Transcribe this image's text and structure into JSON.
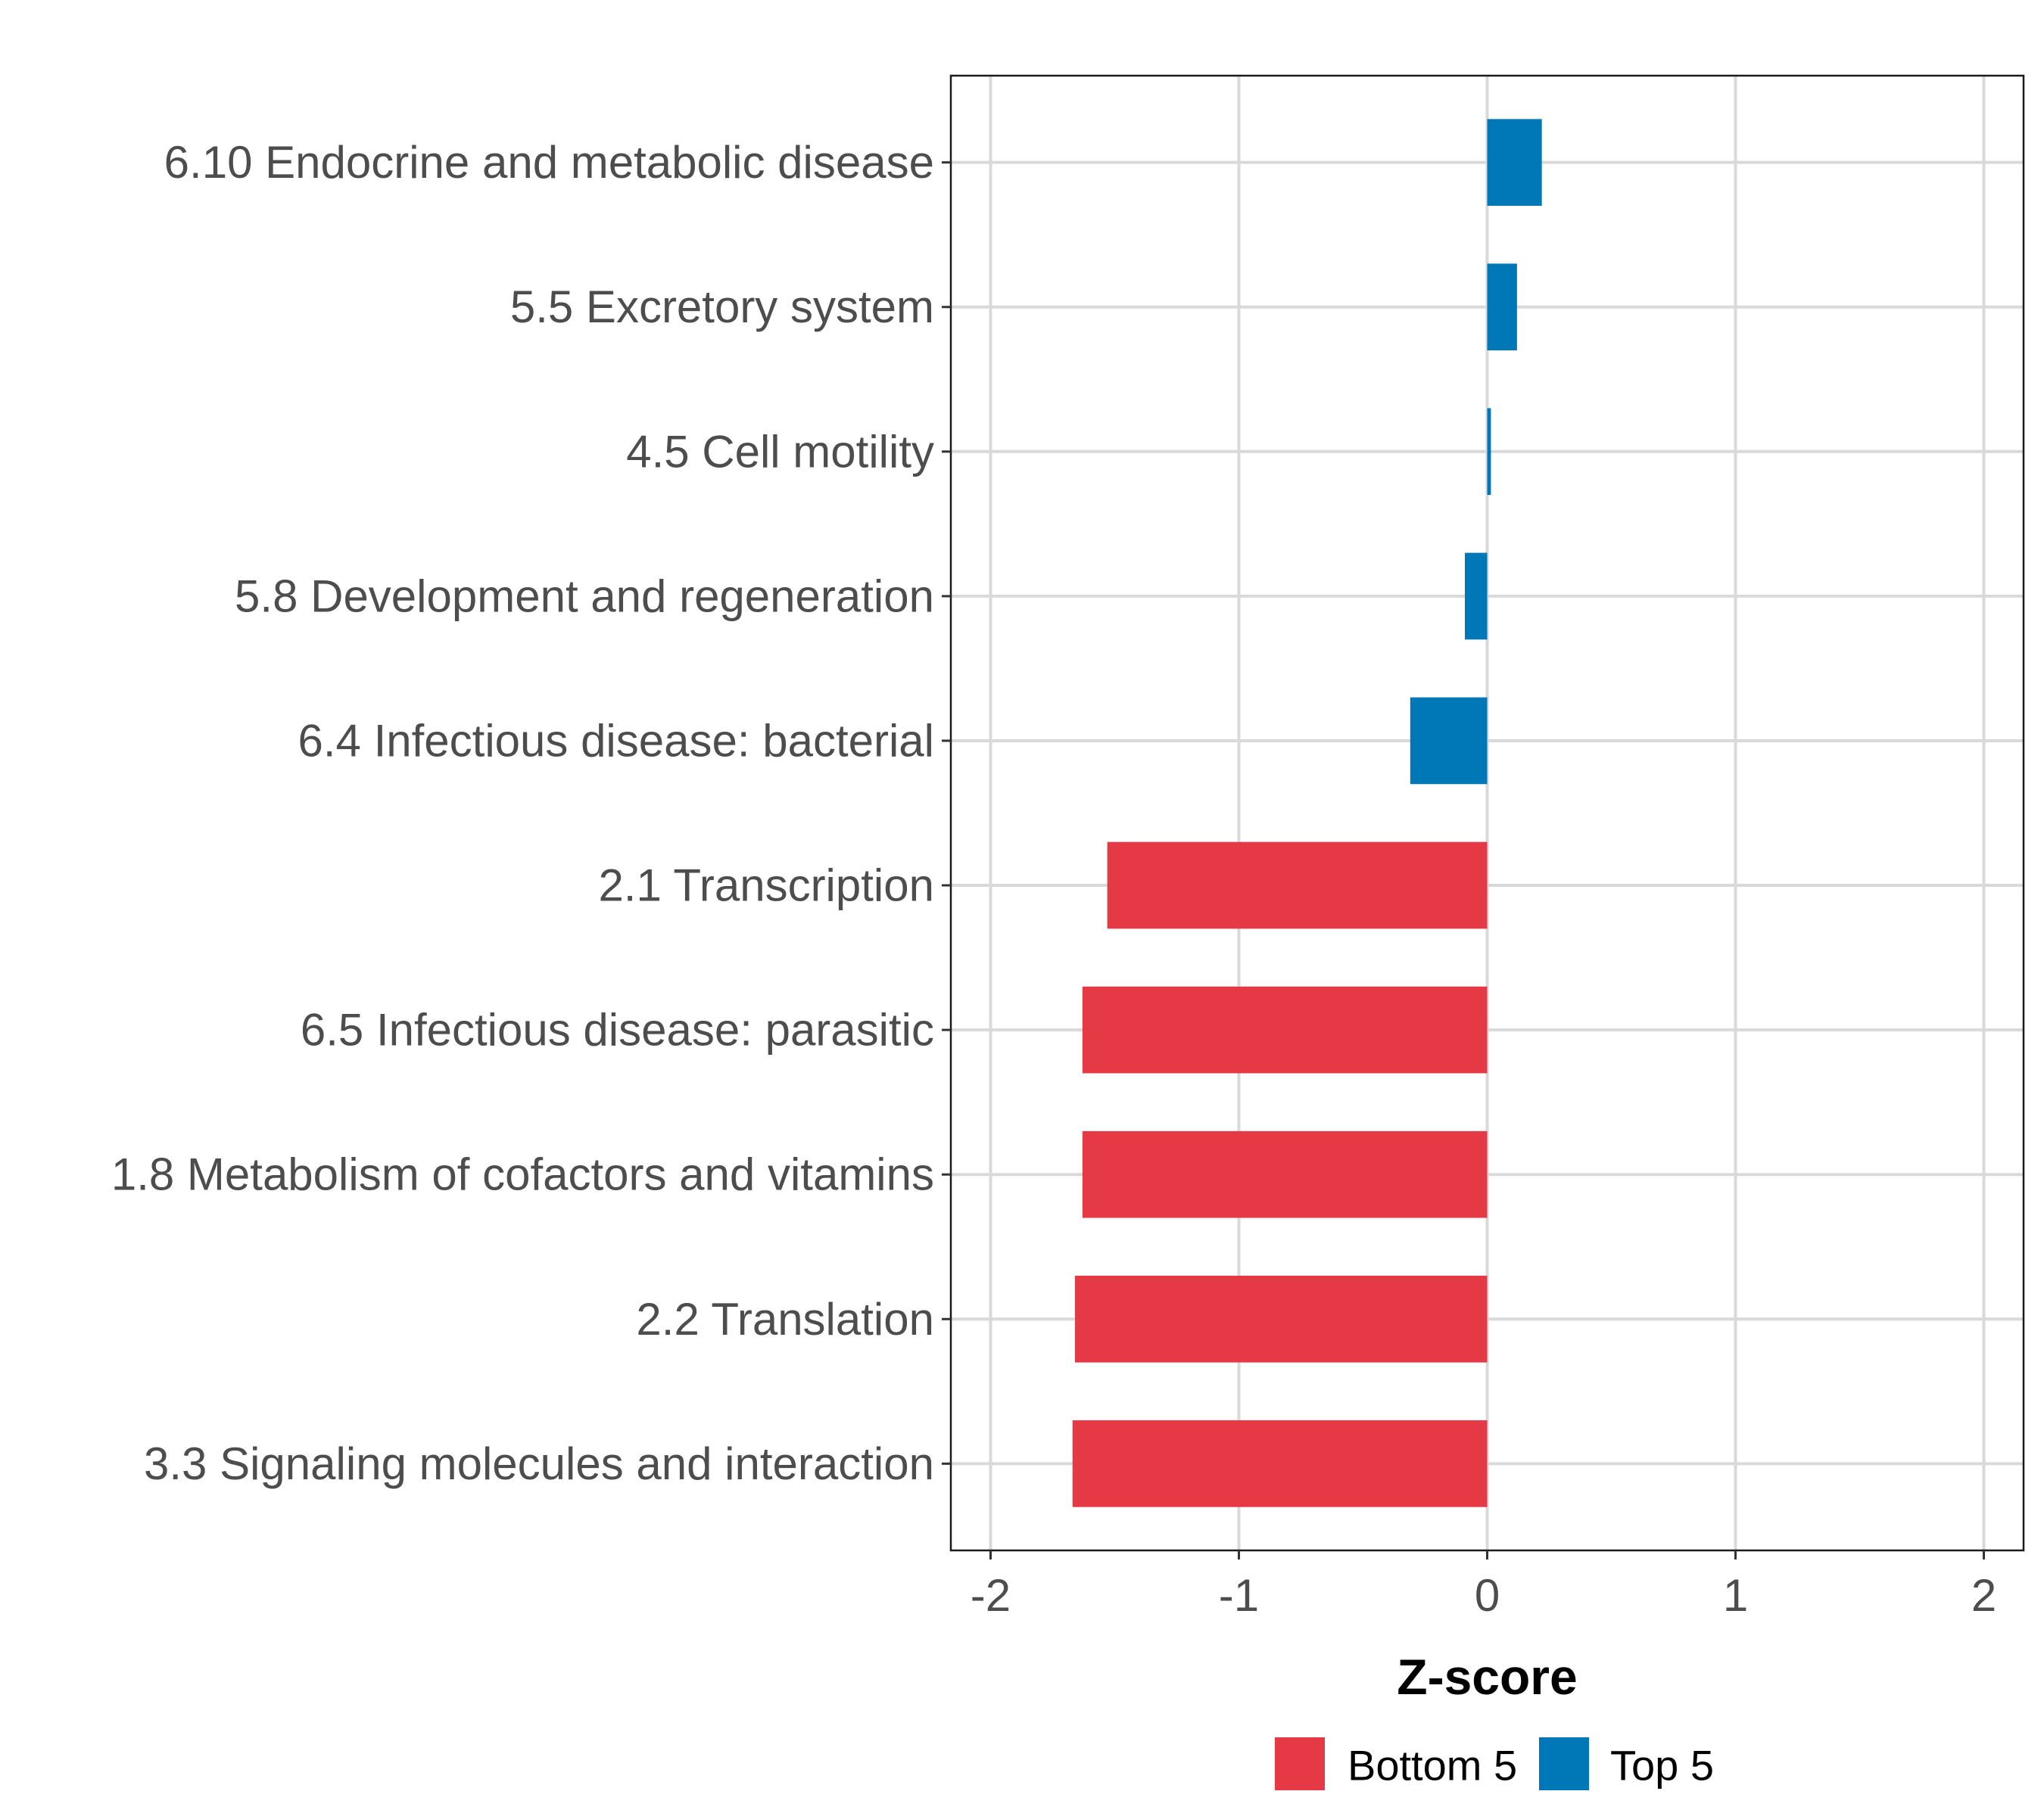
{
  "chart_data": {
    "type": "bar",
    "orientation": "horizontal",
    "title": "",
    "xlabel": "Z-score",
    "ylabel": "",
    "xlim": [
      -2.16,
      2.16
    ],
    "xticks": [
      -2,
      -1,
      0,
      1,
      2
    ],
    "xtick_labels": [
      "-2",
      "-1",
      "0",
      "1",
      "2"
    ],
    "grid": true,
    "legend_position": "bottom",
    "categories": [
      "6.10 Endocrine and metabolic disease",
      "5.5 Excretory system",
      "4.5 Cell motility",
      "5.8 Development and regeneration",
      "6.4 Infectious disease: bacterial",
      "2.1 Transcription",
      "6.5 Infectious disease: parasitic",
      "1.8 Metabolism of cofactors and vitamins",
      "2.2 Translation",
      "3.3 Signaling molecules and interaction"
    ],
    "values": [
      0.22,
      0.12,
      0.015,
      -0.09,
      -0.31,
      -1.53,
      -1.63,
      -1.63,
      -1.66,
      -1.67
    ],
    "groups": [
      "Top 5",
      "Top 5",
      "Top 5",
      "Top 5",
      "Top 5",
      "Bottom 5",
      "Bottom 5",
      "Bottom 5",
      "Bottom 5",
      "Bottom 5"
    ],
    "legend": [
      {
        "label": "Bottom 5",
        "color": "#E63946"
      },
      {
        "label": "Top 5",
        "color": "#0077B6"
      }
    ],
    "colors": {
      "Bottom 5": "#E63946",
      "Top 5": "#0077B6"
    }
  }
}
